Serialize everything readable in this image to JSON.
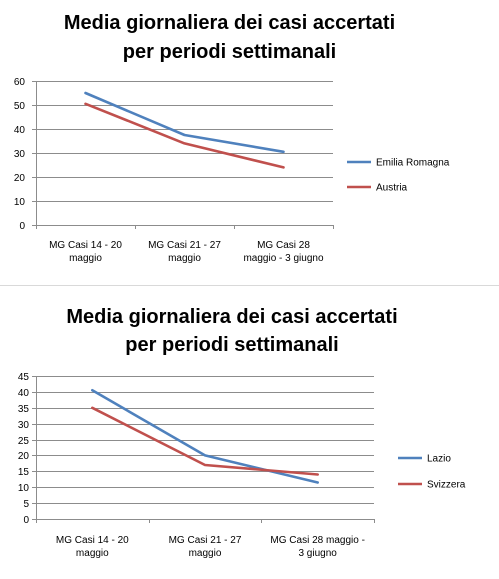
{
  "chart_data": [
    {
      "type": "line",
      "title": [
        "Media giornaliera dei casi accertati",
        "per periodi settimanali"
      ],
      "categories": [
        [
          "MG Casi 14 - 20",
          "maggio"
        ],
        [
          "MG Casi 21 - 27",
          "maggio"
        ],
        [
          "MG Casi 28",
          "maggio - 3 giugno"
        ]
      ],
      "ylim": [
        0,
        60
      ],
      "ytick_step": 10,
      "grid": true,
      "legend_position": "right",
      "series": [
        {
          "name": "Emilia Romagna",
          "color": "#4f81bd",
          "values": [
            55,
            37.5,
            30.5
          ]
        },
        {
          "name": "Austria",
          "color": "#c0504d",
          "values": [
            50.5,
            34,
            24
          ]
        }
      ]
    },
    {
      "type": "line",
      "title": [
        "Media giornaliera dei casi accertati",
        "per periodi settimanali"
      ],
      "categories": [
        [
          "MG Casi 14 - 20",
          "maggio"
        ],
        [
          "MG Casi 21 - 27",
          "maggio"
        ],
        [
          "MG Casi 28 maggio -",
          "3 giugno"
        ]
      ],
      "ylim": [
        0,
        45
      ],
      "ytick_step": 5,
      "grid": true,
      "legend_position": "right",
      "series": [
        {
          "name": "Lazio",
          "color": "#4f81bd",
          "values": [
            40.5,
            20,
            11.5
          ]
        },
        {
          "name": "Svizzera",
          "color": "#c0504d",
          "values": [
            35,
            17,
            14
          ]
        }
      ]
    }
  ]
}
